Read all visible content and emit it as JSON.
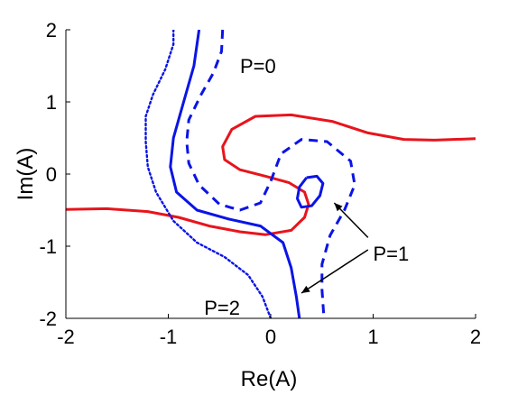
{
  "chart_data": {
    "type": "line",
    "title": "",
    "xlabel": "Re(A)",
    "ylabel": "Im(A)",
    "xlim": [
      -2,
      2
    ],
    "ylim": [
      -2,
      2
    ],
    "xticks": [
      -2,
      -1,
      0,
      1,
      2
    ],
    "yticks": [
      -2,
      -1,
      0,
      1,
      2
    ],
    "xtick_labels": [
      "-2",
      "-1",
      "0",
      "1",
      "2"
    ],
    "ytick_labels": [
      "-2",
      "-1",
      "0",
      "1",
      "2"
    ],
    "grid": false,
    "legend": "none",
    "series": [
      {
        "id": "red",
        "color": "#e8141c",
        "style": "solid",
        "points": [
          [
            -2.0,
            -0.49
          ],
          [
            -1.6,
            -0.48
          ],
          [
            -1.2,
            -0.52
          ],
          [
            -0.9,
            -0.6
          ],
          [
            -0.6,
            -0.72
          ],
          [
            -0.3,
            -0.8
          ],
          [
            -0.05,
            -0.84
          ],
          [
            0.2,
            -0.78
          ],
          [
            0.33,
            -0.6
          ],
          [
            0.37,
            -0.42
          ],
          [
            0.33,
            -0.25
          ],
          [
            0.18,
            -0.12
          ],
          [
            -0.05,
            -0.03
          ],
          [
            -0.3,
            0.06
          ],
          [
            -0.45,
            0.2
          ],
          [
            -0.47,
            0.38
          ],
          [
            -0.38,
            0.62
          ],
          [
            -0.15,
            0.8
          ],
          [
            0.2,
            0.82
          ],
          [
            0.6,
            0.73
          ],
          [
            0.95,
            0.57
          ],
          [
            1.3,
            0.48
          ],
          [
            1.6,
            0.47
          ],
          [
            2.0,
            0.49
          ]
        ]
      },
      {
        "id": "blue-solid",
        "color": "#0a14e6",
        "style": "solid",
        "points": [
          [
            -0.7,
            2.0
          ],
          [
            -0.75,
            1.5
          ],
          [
            -0.85,
            1.0
          ],
          [
            -0.95,
            0.5
          ],
          [
            -0.98,
            0.1
          ],
          [
            -0.92,
            -0.25
          ],
          [
            -0.72,
            -0.5
          ],
          [
            -0.42,
            -0.62
          ],
          [
            -0.1,
            -0.72
          ],
          [
            0.12,
            -0.95
          ],
          [
            0.2,
            -1.3
          ],
          [
            0.25,
            -1.7
          ],
          [
            0.28,
            -2.0
          ]
        ]
      },
      {
        "id": "blue-dashed",
        "color": "#0a14e6",
        "style": "dashed",
        "points": [
          [
            -0.47,
            2.0
          ],
          [
            -0.48,
            1.7
          ],
          [
            -0.56,
            1.4
          ],
          [
            -0.68,
            1.1
          ],
          [
            -0.8,
            0.75
          ],
          [
            -0.82,
            0.45
          ],
          [
            -0.8,
            0.15
          ],
          [
            -0.7,
            -0.15
          ],
          [
            -0.5,
            -0.42
          ],
          [
            -0.3,
            -0.5
          ],
          [
            -0.1,
            -0.4
          ],
          [
            0.0,
            -0.1
          ],
          [
            0.1,
            0.28
          ],
          [
            0.3,
            0.48
          ],
          [
            0.55,
            0.45
          ],
          [
            0.78,
            0.18
          ],
          [
            0.82,
            -0.15
          ],
          [
            0.72,
            -0.5
          ],
          [
            0.58,
            -0.85
          ],
          [
            0.5,
            -1.25
          ],
          [
            0.5,
            -1.6
          ],
          [
            0.52,
            -2.0
          ]
        ]
      },
      {
        "id": "blue-dotted",
        "color": "#0a14e6",
        "style": "dotted",
        "points": [
          [
            -0.95,
            2.0
          ],
          [
            -0.95,
            1.8
          ],
          [
            -1.03,
            1.45
          ],
          [
            -1.15,
            1.1
          ],
          [
            -1.22,
            0.8
          ],
          [
            -1.22,
            0.45
          ],
          [
            -1.2,
            0.1
          ],
          [
            -1.12,
            -0.25
          ],
          [
            -0.95,
            -0.65
          ],
          [
            -0.72,
            -0.95
          ],
          [
            -0.45,
            -1.15
          ],
          [
            -0.22,
            -1.4
          ],
          [
            -0.08,
            -1.7
          ],
          [
            0.0,
            -2.0
          ]
        ]
      },
      {
        "id": "blue-loop",
        "color": "#0a14e6",
        "style": "solid",
        "points": [
          [
            0.35,
            -0.05
          ],
          [
            0.45,
            -0.03
          ],
          [
            0.51,
            -0.13
          ],
          [
            0.48,
            -0.3
          ],
          [
            0.4,
            -0.44
          ],
          [
            0.3,
            -0.46
          ],
          [
            0.26,
            -0.34
          ],
          [
            0.28,
            -0.18
          ],
          [
            0.35,
            -0.05
          ]
        ]
      }
    ],
    "annotations": [
      {
        "text": "P=0",
        "x": -0.3,
        "y": 1.5
      },
      {
        "text": "P=1",
        "x": 1.0,
        "y": -1.1
      },
      {
        "text": "P=2",
        "x": -0.65,
        "y": -1.85
      }
    ],
    "arrows": [
      {
        "from": [
          0.95,
          -0.88
        ],
        "to": [
          0.62,
          -0.4
        ]
      },
      {
        "from": [
          0.95,
          -1.05
        ],
        "to": [
          0.3,
          -1.65
        ]
      }
    ]
  }
}
